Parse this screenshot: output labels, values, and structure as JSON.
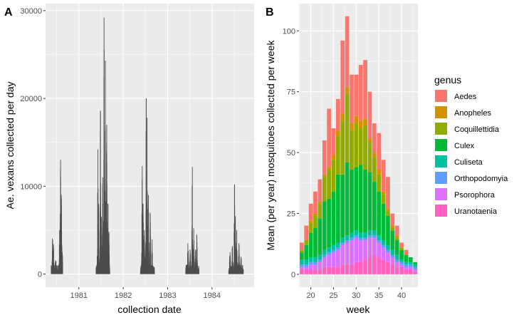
{
  "colors": {
    "panel_bg": "#EBEBEB",
    "grid_major": "#FFFFFF",
    "vexans_bar": "#4D4D4D"
  },
  "chart_data": [
    {
      "type": "bar",
      "panel_tag": "A",
      "xlabel": "collection date",
      "ylabel": "Ae. vexans collected per day",
      "xlim": [
        1980.25,
        1984.95
      ],
      "ylim": [
        -1500,
        30800
      ],
      "x_ticks": [
        {
          "value": 1981,
          "label": "1981"
        },
        {
          "value": 1982,
          "label": "1982"
        },
        {
          "value": 1983,
          "label": "1983"
        },
        {
          "value": 1984,
          "label": "1984"
        }
      ],
      "y_ticks": [
        {
          "value": 0,
          "label": "0"
        },
        {
          "value": 10000,
          "label": "10000"
        },
        {
          "value": 20000,
          "label": "20000"
        },
        {
          "value": 30000,
          "label": "30000"
        }
      ],
      "season_bursts": [
        {
          "year": 1980,
          "start": 1980.37,
          "end": 1980.63,
          "peaks": [
            [
              1980.4,
              3600
            ],
            [
              1980.42,
              3000
            ],
            [
              1980.47,
              1500
            ],
            [
              1980.56,
              5000
            ],
            [
              1980.58,
              13000
            ],
            [
              1980.6,
              8600
            ],
            [
              1980.62,
              2500
            ]
          ]
        },
        {
          "year": 1981,
          "start": 1981.38,
          "end": 1981.69,
          "peaks": [
            [
              1981.42,
              14200
            ],
            [
              1981.44,
              8000
            ],
            [
              1981.48,
              18600
            ],
            [
              1981.5,
              6500
            ],
            [
              1981.53,
              11000
            ],
            [
              1981.56,
              29200
            ],
            [
              1981.59,
              24300
            ],
            [
              1981.62,
              17000
            ],
            [
              1981.65,
              8000
            ],
            [
              1981.67,
              4800
            ]
          ]
        },
        {
          "year": 1982,
          "start": 1982.38,
          "end": 1982.7,
          "peaks": [
            [
              1982.42,
              12300
            ],
            [
              1982.44,
              8000
            ],
            [
              1982.47,
              5000
            ],
            [
              1982.51,
              20000
            ],
            [
              1982.53,
              17800
            ],
            [
              1982.56,
              9000
            ],
            [
              1982.6,
              7000
            ],
            [
              1982.64,
              3500
            ]
          ]
        },
        {
          "year": 1983,
          "start": 1983.4,
          "end": 1983.7,
          "peaks": [
            [
              1983.45,
              3500
            ],
            [
              1983.5,
              2800
            ],
            [
              1983.55,
              12200
            ],
            [
              1983.58,
              5200
            ],
            [
              1983.62,
              2800
            ],
            [
              1983.65,
              4500
            ]
          ]
        },
        {
          "year": 1984,
          "start": 1984.37,
          "end": 1984.7,
          "peaks": [
            [
              1984.4,
              2500
            ],
            [
              1984.45,
              3200
            ],
            [
              1984.5,
              10200
            ],
            [
              1984.52,
              6600
            ],
            [
              1984.55,
              4800
            ],
            [
              1984.6,
              3500
            ],
            [
              1984.65,
              1500
            ]
          ]
        }
      ]
    },
    {
      "type": "stacked-bar",
      "panel_tag": "B",
      "xlabel": "week",
      "ylabel": "Mean (per year) mosquitoes collected per week",
      "xlim": [
        17.4,
        43.6
      ],
      "ylim": [
        -5.3,
        111.2
      ],
      "x_ticks": [
        {
          "value": 20,
          "label": "20"
        },
        {
          "value": 25,
          "label": "25"
        },
        {
          "value": 30,
          "label": "30"
        },
        {
          "value": 35,
          "label": "35"
        },
        {
          "value": 40,
          "label": "40"
        }
      ],
      "y_ticks": [
        {
          "value": 0,
          "label": "0"
        },
        {
          "value": 25,
          "label": "25"
        },
        {
          "value": 50,
          "label": "50"
        },
        {
          "value": 75,
          "label": "75"
        },
        {
          "value": 100,
          "label": "100"
        }
      ],
      "categories": [
        18,
        19,
        20,
        21,
        22,
        23,
        24,
        25,
        26,
        27,
        28,
        29,
        30,
        31,
        32,
        33,
        34,
        35,
        36,
        37,
        38,
        39,
        40,
        41,
        42,
        43
      ],
      "legend": {
        "title": "genus",
        "placement": "right"
      },
      "series": [
        {
          "name": "Uranotaenia",
          "color": "#FF61C3",
          "values": [
            2,
            2,
            2,
            2,
            2,
            3,
            3,
            3,
            3,
            4,
            4,
            4,
            5,
            5,
            6,
            7,
            8,
            7,
            6,
            5,
            4,
            3,
            3,
            2,
            2,
            1
          ]
        },
        {
          "name": "Psorophora",
          "color": "#DB72FB",
          "values": [
            1,
            1,
            2,
            2,
            3,
            4,
            5,
            6,
            7,
            8,
            9,
            10,
            10,
            9,
            8,
            8,
            7,
            6,
            5,
            4,
            3,
            2,
            1,
            1,
            1,
            1
          ]
        },
        {
          "name": "Orthopodomyia",
          "color": "#619CFF",
          "values": [
            1,
            1,
            1,
            1,
            1,
            1,
            1,
            1,
            1,
            1,
            1,
            1,
            1,
            1,
            1,
            1,
            1,
            1,
            1,
            1,
            1,
            1,
            1,
            1,
            1,
            1
          ]
        },
        {
          "name": "Culiseta",
          "color": "#00C19F",
          "values": [
            2,
            2,
            2,
            2,
            2,
            2,
            2,
            2,
            2,
            2,
            2,
            2,
            2,
            2,
            2,
            2,
            2,
            2,
            2,
            2,
            2,
            2,
            1,
            1,
            1,
            1
          ]
        },
        {
          "name": "Culex",
          "color": "#00BA38",
          "values": [
            3,
            6,
            10,
            12,
            15,
            20,
            20,
            22,
            28,
            26,
            30,
            26,
            26,
            28,
            26,
            24,
            20,
            18,
            15,
            12,
            8,
            6,
            4,
            3,
            2,
            1
          ]
        },
        {
          "name": "Coquillettidia",
          "color": "#93AA00",
          "values": [
            1,
            2,
            4,
            5,
            6,
            10,
            12,
            13,
            16,
            22,
            28,
            16,
            18,
            15,
            18,
            12,
            10,
            7,
            4,
            2,
            1,
            1,
            1,
            0,
            0,
            0
          ]
        },
        {
          "name": "Anopheles",
          "color": "#D39200",
          "values": [
            0,
            0,
            1,
            1,
            1,
            1,
            1,
            2,
            2,
            3,
            3,
            3,
            3,
            3,
            3,
            2,
            2,
            2,
            1,
            1,
            1,
            1,
            0,
            0,
            0,
            0
          ]
        },
        {
          "name": "Aedes",
          "color": "#F8766D",
          "values": [
            3,
            6,
            7,
            9,
            9,
            14,
            24,
            11,
            13,
            30,
            29,
            20,
            17,
            23,
            24,
            19,
            12,
            15,
            13,
            13,
            5,
            4,
            2,
            2,
            0,
            0
          ]
        }
      ]
    }
  ]
}
